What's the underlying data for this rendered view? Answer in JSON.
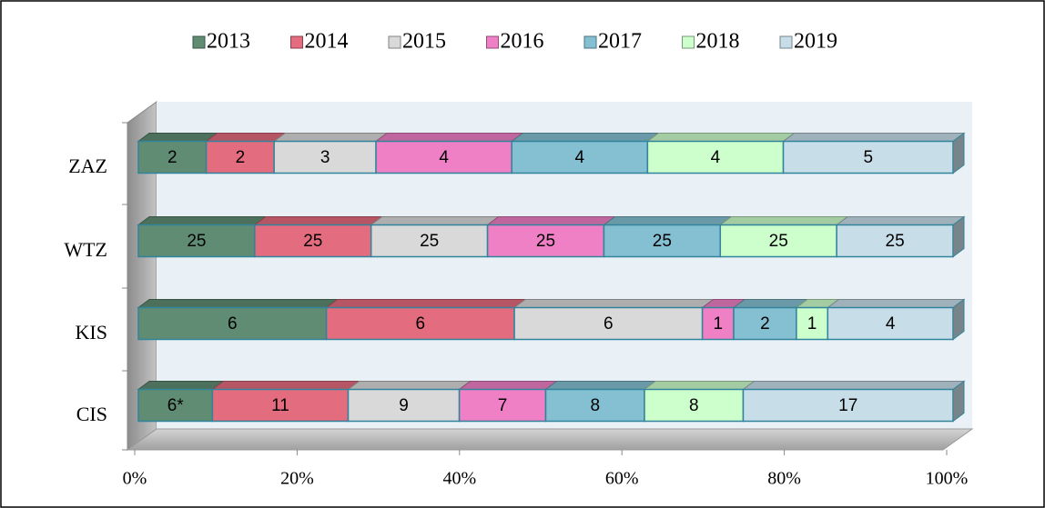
{
  "chart_data": {
    "type": "bar",
    "orientation": "horizontal",
    "stacking": "percent",
    "categories": [
      "ZAZ",
      "WTZ",
      "KIS",
      "CIS"
    ],
    "series": [
      {
        "name": "2013",
        "color": "#5f8c72",
        "values": [
          2,
          25,
          6,
          6
        ],
        "value_labels": [
          "2",
          "25",
          "6",
          "6*"
        ]
      },
      {
        "name": "2014",
        "color": "#e36c7e",
        "values": [
          2,
          25,
          6,
          11
        ]
      },
      {
        "name": "2015",
        "color": "#d9d9d9",
        "values": [
          3,
          25,
          6,
          9
        ]
      },
      {
        "name": "2016",
        "color": "#ef80c6",
        "values": [
          4,
          25,
          1,
          7
        ]
      },
      {
        "name": "2017",
        "color": "#84bfd2",
        "values": [
          4,
          25,
          2,
          8
        ]
      },
      {
        "name": "2018",
        "color": "#ccffcc",
        "values": [
          4,
          25,
          1,
          8
        ]
      },
      {
        "name": "2019",
        "color": "#c7dde8",
        "values": [
          5,
          25,
          4,
          17
        ]
      }
    ],
    "xlim": [
      0,
      100
    ],
    "xticks": [
      {
        "value": 0,
        "label": "0%"
      },
      {
        "value": 20,
        "label": "20%"
      },
      {
        "value": 40,
        "label": "40%"
      },
      {
        "value": 60,
        "label": "60%"
      },
      {
        "value": 80,
        "label": "80%"
      },
      {
        "value": 100,
        "label": "100%"
      }
    ],
    "legend": "top"
  }
}
